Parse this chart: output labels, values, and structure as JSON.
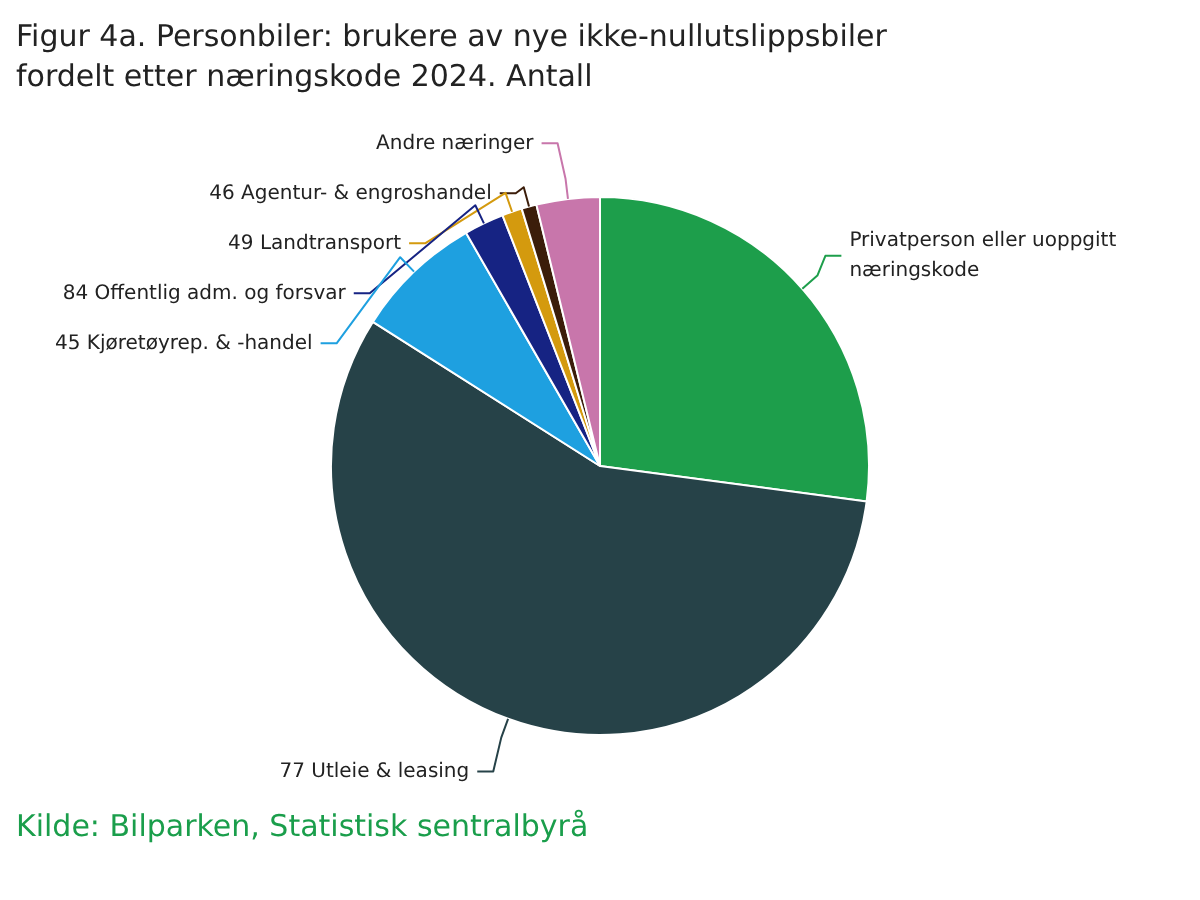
{
  "chart_data": {
    "type": "pie",
    "title": "Figur 4a. Personbiler: brukere av nye ikke-nullutslippsbiler fordelt etter næringskode 2024. Antall",
    "categories": [
      "Privatperson eller uoppgitt næringskode",
      "77 Utleie & leasing",
      "45 Kjøretøyrep. & -handel",
      "84 Offentlig adm. og forsvar",
      "49 Landtransport",
      "46 Agentur- & engroshandel",
      "Andre næringer"
    ],
    "values": [
      27.1,
      56.9,
      7.7,
      2.4,
      1.2,
      0.9,
      3.8
    ],
    "colors": [
      "#1d9e4b",
      "#264248",
      "#1ea0e0",
      "#162383",
      "#d49a0e",
      "#3b1d0a",
      "#c876ab"
    ],
    "legend": false,
    "annotations": [
      "Kilde: Bilparken, Statistisk sentralbyrå"
    ]
  }
}
